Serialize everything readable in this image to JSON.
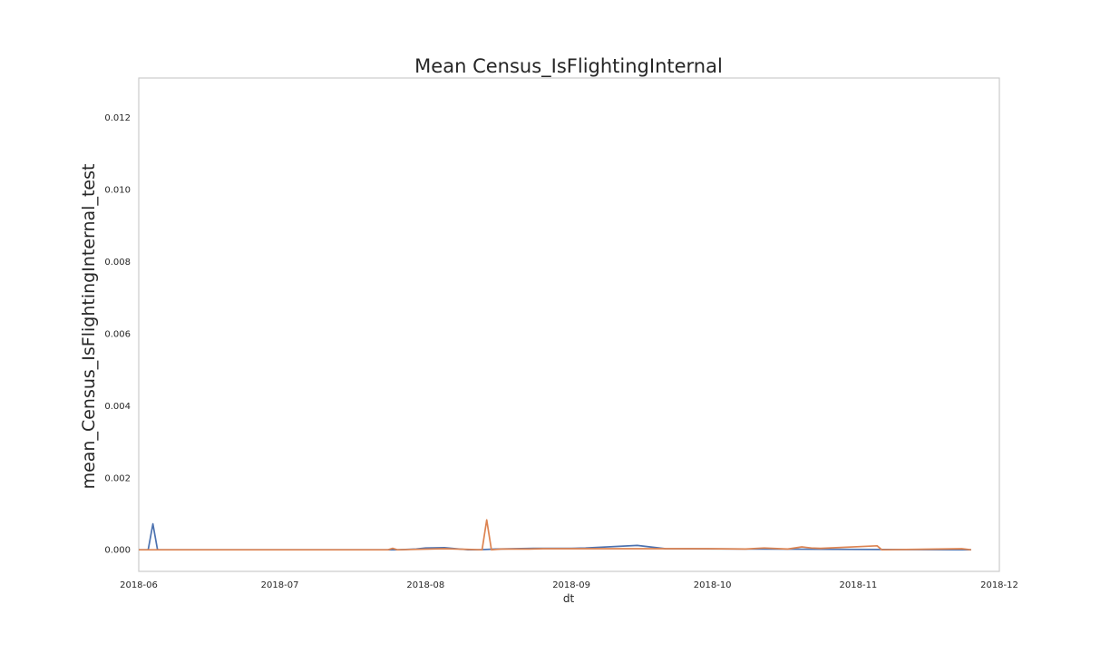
{
  "chart_data": {
    "type": "line",
    "title": "Mean Census_IsFlightingInternal",
    "xlabel": "dt",
    "ylabel": "mean_Census_IsFlightingInternal_test",
    "xlim": [
      "2018-06-01",
      "2018-12-01"
    ],
    "ylim": [
      -0.0006,
      0.0131
    ],
    "x_ticks": [
      "2018-06",
      "2018-07",
      "2018-08",
      "2018-09",
      "2018-10",
      "2018-11",
      "2018-12"
    ],
    "y_ticks": [
      "0.000",
      "0.002",
      "0.004",
      "0.006",
      "0.008",
      "0.010",
      "0.012"
    ],
    "grid": false,
    "series": [
      {
        "color": "#4c72b0",
        "points": [
          [
            "2018-06-01",
            0
          ],
          [
            "2018-06-03",
            0
          ],
          [
            "2018-06-04",
            0.00072
          ],
          [
            "2018-06-05",
            0
          ],
          [
            "2018-07-26",
            0
          ],
          [
            "2018-07-30",
            2e-05
          ],
          [
            "2018-08-01",
            5e-05
          ],
          [
            "2018-08-05",
            6e-05
          ],
          [
            "2018-08-10",
            0
          ],
          [
            "2018-08-12",
            0
          ],
          [
            "2018-08-16",
            2e-05
          ],
          [
            "2018-08-24",
            4e-05
          ],
          [
            "2018-09-01",
            4e-05
          ],
          [
            "2018-09-04",
            5e-05
          ],
          [
            "2018-09-15",
            0.00012
          ],
          [
            "2018-09-21",
            3e-05
          ],
          [
            "2018-11-25",
            0
          ]
        ]
      },
      {
        "color": "#dd8452",
        "points": [
          [
            "2018-06-01",
            0
          ],
          [
            "2018-07-24",
            0
          ],
          [
            "2018-07-25",
            4e-05
          ],
          [
            "2018-07-26",
            0
          ],
          [
            "2018-08-05",
            3e-05
          ],
          [
            "2018-08-13",
            0
          ],
          [
            "2018-08-14",
            0.00083
          ],
          [
            "2018-08-15",
            0
          ],
          [
            "2018-08-17",
            2e-05
          ],
          [
            "2018-08-23",
            2e-05
          ],
          [
            "2018-08-26",
            3e-05
          ],
          [
            "2018-09-30",
            3e-05
          ],
          [
            "2018-10-08",
            2e-05
          ],
          [
            "2018-10-12",
            5e-05
          ],
          [
            "2018-10-17",
            2e-05
          ],
          [
            "2018-10-20",
            8e-05
          ],
          [
            "2018-10-22",
            5e-05
          ],
          [
            "2018-10-24",
            4e-05
          ],
          [
            "2018-11-05",
            0.00011
          ],
          [
            "2018-11-06",
            0
          ],
          [
            "2018-11-23",
            3e-05
          ],
          [
            "2018-11-25",
            0
          ]
        ]
      }
    ]
  }
}
